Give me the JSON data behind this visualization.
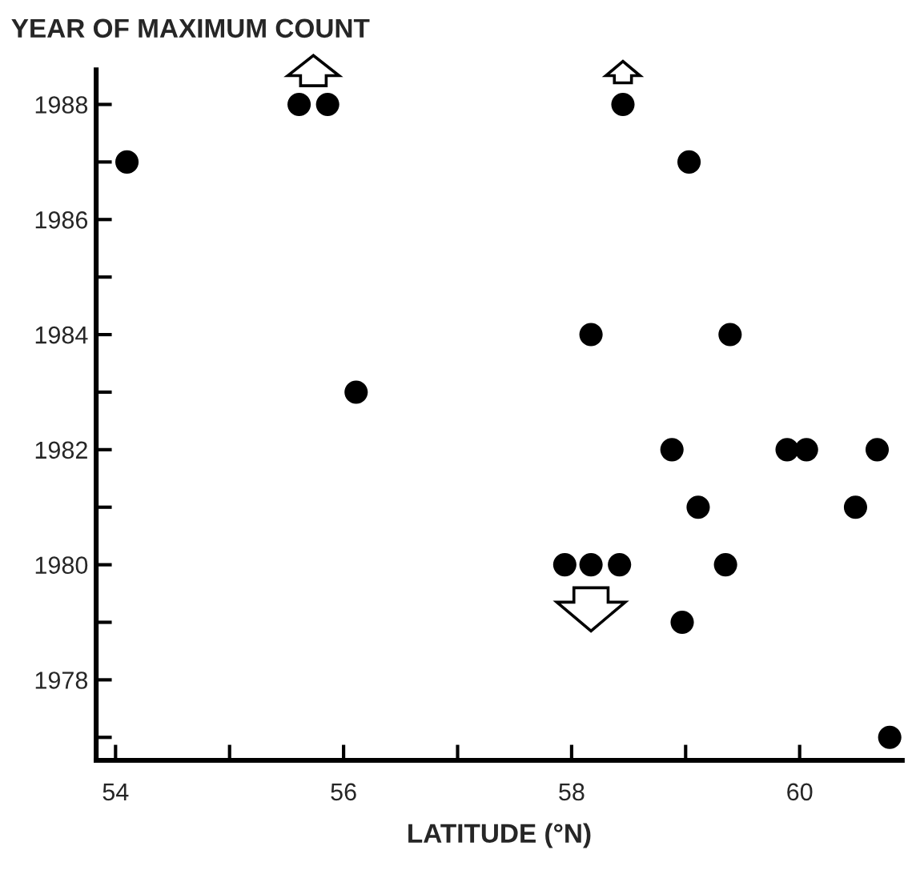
{
  "chart_data": {
    "type": "scatter",
    "xlabel": "LATITUDE (°N)",
    "ylabel": "YEAR OF MAXIMUM COUNT",
    "x": [
      54.1,
      55.61,
      55.86,
      56.11,
      57.94,
      58.17,
      58.42,
      58.17,
      58.45,
      58.88,
      59.03,
      58.97,
      59.11,
      59.39,
      59.35,
      59.89,
      60.06,
      60.49,
      60.68,
      60.79
    ],
    "series": [
      {
        "color": "#000000",
        "values": [
          1987,
          1988,
          1988,
          1983,
          1980,
          1980,
          1980,
          1984,
          1988,
          1982,
          1987,
          1979,
          1981,
          1984,
          1980,
          1982,
          1982,
          1981,
          1982,
          1977
        ]
      }
    ],
    "marker": "circle",
    "grid": false,
    "xlim": [
      53.83,
      60.9
    ],
    "ylim": [
      1976.6,
      1988.6
    ],
    "xticks": [
      54,
      {
        "value": 55,
        "label": null
      },
      56,
      {
        "value": 57,
        "label": null
      },
      58,
      {
        "value": 59,
        "label": null
      },
      60
    ],
    "yticks": [
      {
        "value": 1977,
        "label": null
      },
      1978,
      {
        "value": 1979,
        "label": null
      },
      1980,
      {
        "value": 1981,
        "label": null
      },
      1982,
      {
        "value": 1983,
        "label": null
      },
      1984,
      {
        "value": 1985,
        "label": null
      },
      1986,
      {
        "value": 1987,
        "label": null
      },
      1988
    ]
  }
}
